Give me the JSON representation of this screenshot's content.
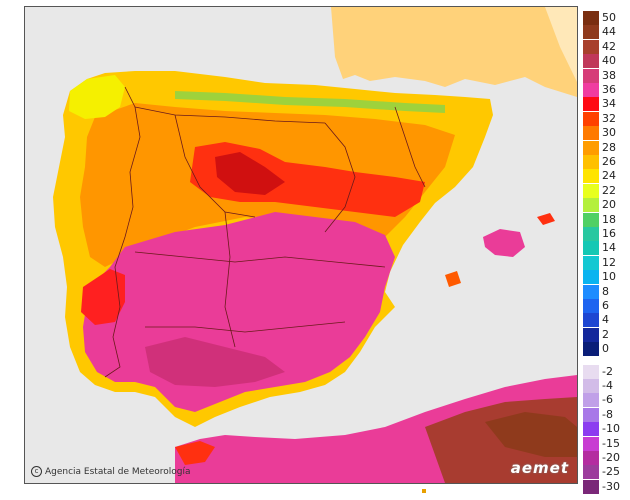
{
  "credit": {
    "text": "Agencia Estatal de Meteorología",
    "icon": "copyright-icon"
  },
  "brand": {
    "text": "aemet"
  },
  "legend": {
    "positive": [
      {
        "label": "50",
        "color": "#7a2e10"
      },
      {
        "label": "44",
        "color": "#8f3a1c"
      },
      {
        "label": "42",
        "color": "#a8402c"
      },
      {
        "label": "40",
        "color": "#c0385a"
      },
      {
        "label": "38",
        "color": "#d63c78"
      },
      {
        "label": "36",
        "color": "#f03ca0"
      },
      {
        "label": "34",
        "color": "#ff0a14"
      },
      {
        "label": "32",
        "color": "#ff4000"
      },
      {
        "label": "30",
        "color": "#ff7a00"
      },
      {
        "label": "28",
        "color": "#ff9c00"
      },
      {
        "label": "26",
        "color": "#ffc000"
      },
      {
        "label": "24",
        "color": "#ffe400"
      },
      {
        "label": "22",
        "color": "#e8ff1e"
      },
      {
        "label": "20",
        "color": "#b4f03c"
      },
      {
        "label": "18",
        "color": "#50d064"
      },
      {
        "label": "16",
        "color": "#28c8a0"
      },
      {
        "label": "14",
        "color": "#14c8b4"
      },
      {
        "label": "12",
        "color": "#14c8d2"
      },
      {
        "label": "10",
        "color": "#0ab4f0"
      },
      {
        "label": "8",
        "color": "#1e8cff"
      },
      {
        "label": "6",
        "color": "#1e64f0"
      },
      {
        "label": "4",
        "color": "#1e46d2"
      },
      {
        "label": "2",
        "color": "#14289c"
      },
      {
        "label": "0",
        "color": "#0a1e78"
      }
    ],
    "negative": [
      {
        "label": "-2",
        "color": "#e8dcf0"
      },
      {
        "label": "-4",
        "color": "#d2bce8"
      },
      {
        "label": "-6",
        "color": "#c0a0e8"
      },
      {
        "label": "-8",
        "color": "#a878e8"
      },
      {
        "label": "-10",
        "color": "#8c3cf0"
      },
      {
        "label": "-15",
        "color": "#c83cd2"
      },
      {
        "label": "-20",
        "color": "#b42ca0"
      },
      {
        "label": "-25",
        "color": "#9c3c9c"
      },
      {
        "label": "-30",
        "color": "#7a2878"
      }
    ]
  },
  "map_colors": {
    "sea": "#e8e8e8",
    "france": "#ffe4a0",
    "border": "#6b1a1a"
  }
}
